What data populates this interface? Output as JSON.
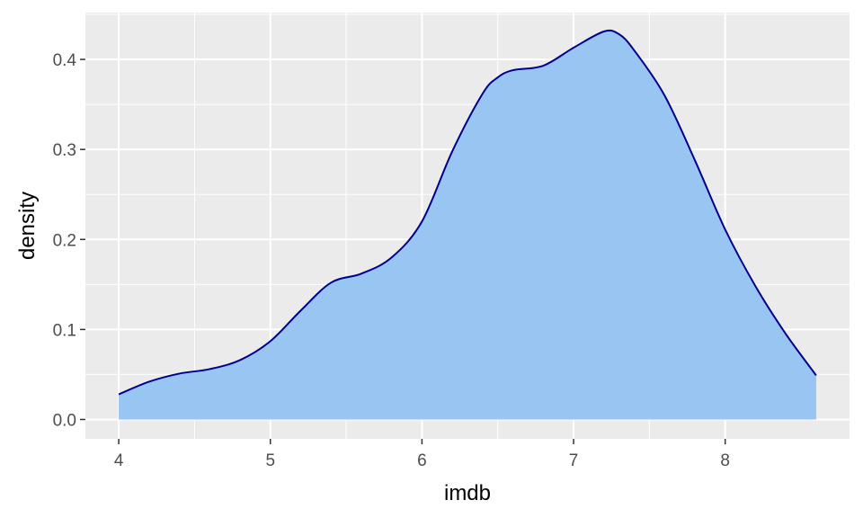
{
  "chart_data": {
    "type": "area",
    "title": "",
    "xlabel": "imdb",
    "ylabel": "density",
    "xlim": [
      3.78,
      8.82
    ],
    "ylim": [
      -0.0215,
      0.452
    ],
    "x_ticks": [
      4,
      5,
      6,
      7,
      8
    ],
    "y_ticks": [
      0.0,
      0.1,
      0.2,
      0.3,
      0.4
    ],
    "x_tick_labels": [
      "4",
      "5",
      "6",
      "7",
      "8"
    ],
    "y_tick_labels": [
      "0.0",
      "0.1",
      "0.2",
      "0.3",
      "0.4"
    ],
    "grid": true,
    "legend": "none",
    "series": [
      {
        "x": [
          4.0,
          4.2,
          4.4,
          4.6,
          4.8,
          5.0,
          5.2,
          5.4,
          5.6,
          5.8,
          6.0,
          6.2,
          6.4,
          6.5,
          6.6,
          6.8,
          7.0,
          7.2,
          7.3,
          7.4,
          7.6,
          7.8,
          8.0,
          8.2,
          8.4,
          8.6
        ],
        "y": [
          0.028,
          0.042,
          0.051,
          0.056,
          0.066,
          0.087,
          0.121,
          0.152,
          0.162,
          0.18,
          0.22,
          0.298,
          0.362,
          0.38,
          0.388,
          0.393,
          0.413,
          0.431,
          0.428,
          0.41,
          0.36,
          0.288,
          0.211,
          0.148,
          0.095,
          0.049
        ],
        "fill_color": "#99c5f2",
        "line_color": "#00008b"
      }
    ],
    "panel_color": "#ebebeb",
    "grid_color": "#ffffff"
  }
}
